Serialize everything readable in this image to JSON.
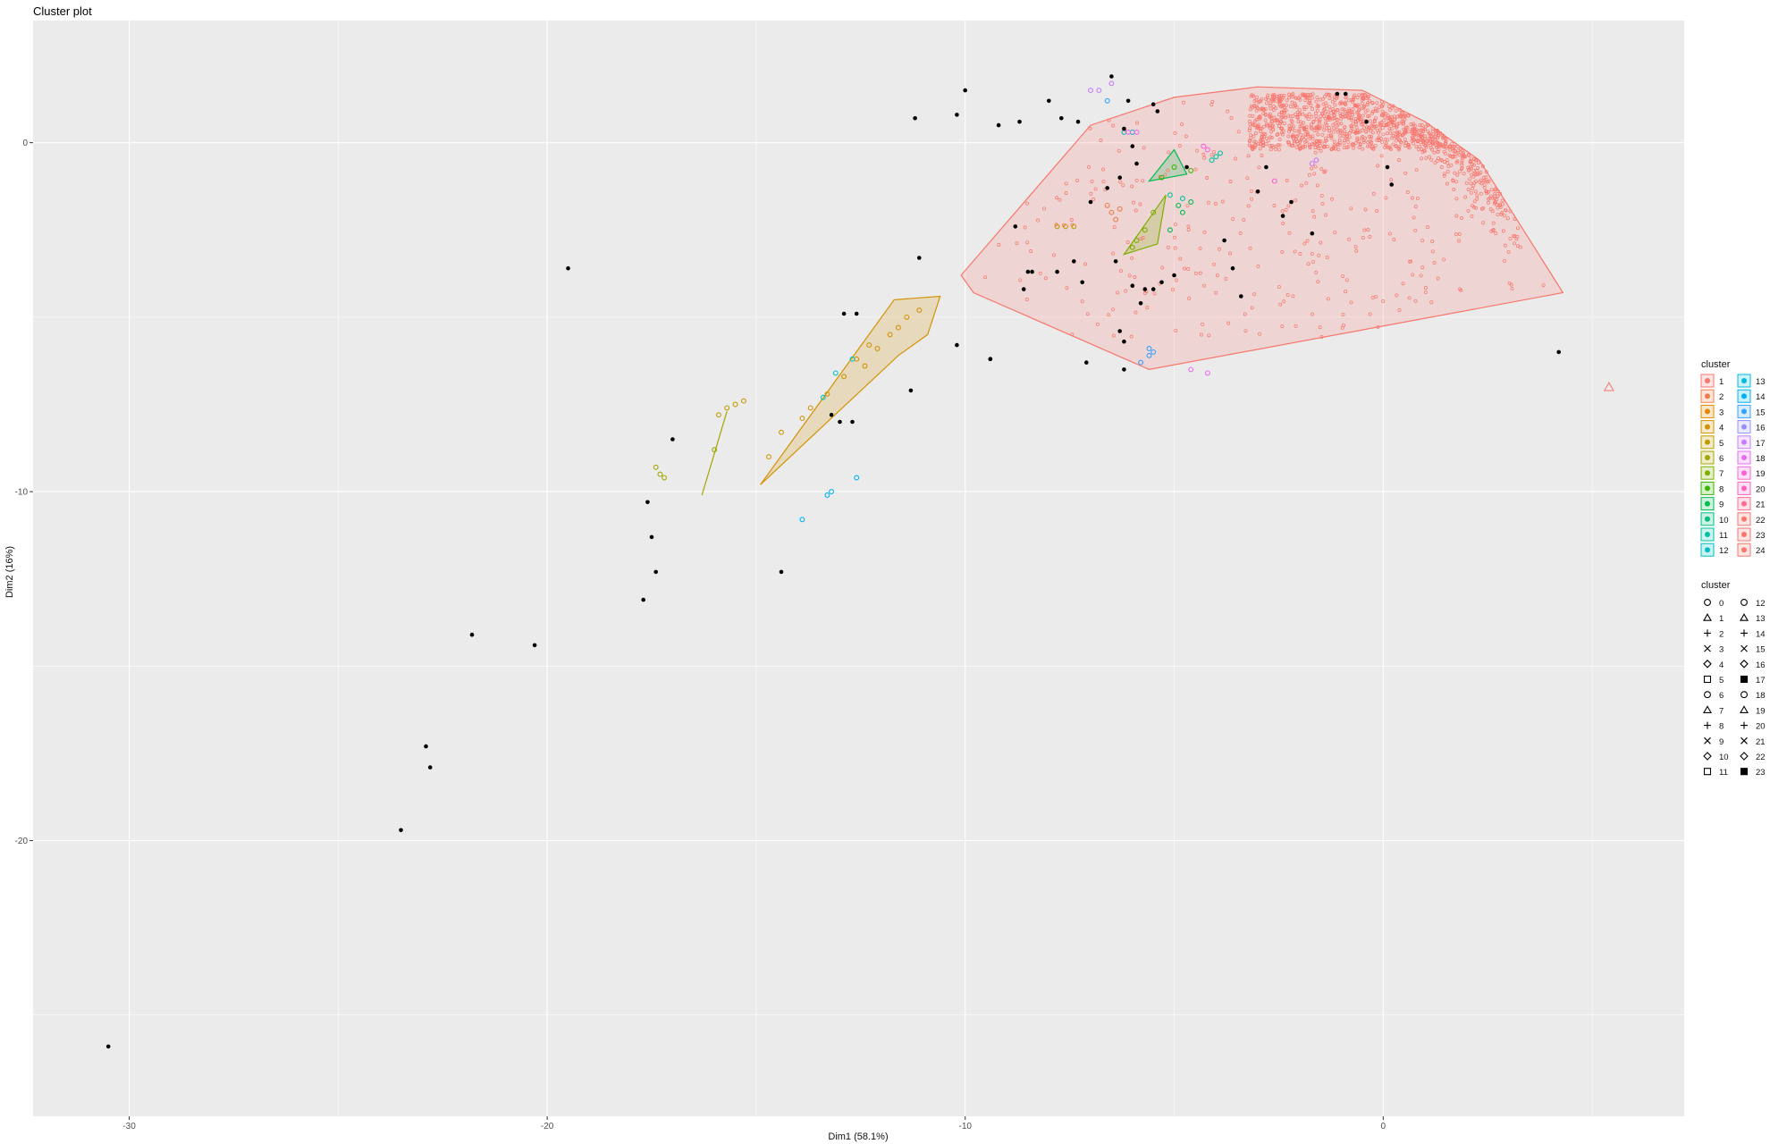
{
  "chart_data": {
    "type": "scatter",
    "title": "Cluster plot",
    "xlabel": "Dim1 (58.1%)",
    "ylabel": "Dim2 (16%)",
    "xlim": [
      -32.3,
      7.2
    ],
    "ylim": [
      -27.9,
      3.5
    ],
    "xticks": [
      "-30",
      "-20",
      "-10",
      "0"
    ],
    "xtick_values": [
      -30,
      -20,
      -10,
      0
    ],
    "yticks": [
      "0",
      "-10",
      "-20"
    ],
    "ytick_values": [
      0,
      -10,
      -20
    ],
    "grid": true,
    "legend_position": "right",
    "legend_color": {
      "title": "cluster",
      "entries": [
        "1",
        "2",
        "3",
        "4",
        "5",
        "6",
        "7",
        "8",
        "9",
        "10",
        "11",
        "12",
        "13",
        "14",
        "15",
        "16",
        "17",
        "18",
        "19",
        "20",
        "21",
        "22",
        "23",
        "24"
      ],
      "colors": [
        "#F8766D",
        "#EF7F49",
        "#E38900",
        "#D39200",
        "#C09B00",
        "#A3A500",
        "#7CAE00",
        "#39B600",
        "#00BB4E",
        "#00BF7D",
        "#00C1A3",
        "#00BFC4",
        "#00BAE0",
        "#00B0F6",
        "#35A2FF",
        "#9590FF",
        "#C77CFF",
        "#E76BF3",
        "#FA62DB",
        "#FF62BC",
        "#FF6C91",
        "#F8766D",
        "#F8766D",
        "#F8766D"
      ]
    },
    "legend_shape": {
      "title": "cluster",
      "entries": [
        "0",
        "1",
        "2",
        "3",
        "4",
        "5",
        "6",
        "7",
        "8",
        "9",
        "10",
        "11",
        "12",
        "13",
        "14",
        "15",
        "16",
        "17",
        "18",
        "19",
        "20",
        "21",
        "22",
        "23"
      ]
    },
    "main_cluster": {
      "name": "1",
      "color": "#F8766D",
      "hull": [
        [
          -10.1,
          -3.8
        ],
        [
          -9.8,
          -4.3
        ],
        [
          -5.6,
          -6.5
        ],
        [
          4.3,
          -4.3
        ],
        [
          2.3,
          -0.5
        ],
        [
          1.0,
          0.6
        ],
        [
          -0.5,
          1.5
        ],
        [
          -3.0,
          1.6
        ],
        [
          -5.0,
          1.3
        ],
        [
          -7.0,
          0.5
        ]
      ]
    },
    "clusters": [
      {
        "name": "2",
        "color": "#EF7F49",
        "points": [
          [
            -6.6,
            -1.8
          ],
          [
            -6.4,
            -2.2
          ],
          [
            -6.5,
            -2.0
          ],
          [
            -6.3,
            -1.9
          ]
        ]
      },
      {
        "name": "4",
        "color": "#D39200",
        "hull": [
          [
            -14.9,
            -9.8
          ],
          [
            -11.7,
            -4.5
          ],
          [
            -10.6,
            -4.4
          ],
          [
            -10.9,
            -5.5
          ],
          [
            -11.6,
            -6.1
          ]
        ],
        "points": [
          [
            -14.7,
            -9.0
          ],
          [
            -14.4,
            -8.3
          ],
          [
            -13.9,
            -7.9
          ],
          [
            -13.7,
            -7.6
          ],
          [
            -13.3,
            -7.2
          ],
          [
            -12.9,
            -6.7
          ],
          [
            -12.6,
            -6.2
          ],
          [
            -12.3,
            -5.8
          ],
          [
            -11.8,
            -5.5
          ],
          [
            -11.6,
            -5.3
          ],
          [
            -11.4,
            -5.0
          ],
          [
            -11.1,
            -4.8
          ],
          [
            -12.1,
            -5.9
          ],
          [
            -12.4,
            -6.4
          ]
        ]
      },
      {
        "name": "5",
        "color": "#C09B00",
        "points": [
          [
            -15.9,
            -7.8
          ],
          [
            -15.7,
            -7.6
          ],
          [
            -15.5,
            -7.5
          ],
          [
            -15.3,
            -7.4
          ],
          [
            -7.6,
            -2.4
          ],
          [
            -7.4,
            -2.4
          ],
          [
            -7.8,
            -2.4
          ]
        ]
      },
      {
        "name": "6",
        "color": "#A3A500",
        "hull": [
          [
            -16.3,
            -10.1
          ],
          [
            -15.7,
            -7.7
          ],
          [
            -15.9,
            -8.5
          ]
        ],
        "points": [
          [
            -16.0,
            -8.8
          ],
          [
            -17.4,
            -9.3
          ],
          [
            -17.3,
            -9.5
          ],
          [
            -17.2,
            -9.6
          ]
        ]
      },
      {
        "name": "7",
        "color": "#7CAE00",
        "hull": [
          [
            -6.2,
            -3.2
          ],
          [
            -5.2,
            -1.5
          ],
          [
            -5.4,
            -2.9
          ]
        ],
        "points": [
          [
            -5.7,
            -2.5
          ],
          [
            -5.9,
            -2.8
          ],
          [
            -6.0,
            -3.0
          ],
          [
            -5.5,
            -2.0
          ]
        ]
      },
      {
        "name": "8",
        "color": "#39B600",
        "points": [
          [
            -5.0,
            -0.7
          ],
          [
            -4.6,
            -0.8
          ],
          [
            -5.3,
            -1.0
          ]
        ]
      },
      {
        "name": "9",
        "color": "#00BB4E",
        "hull": [
          [
            -5.6,
            -1.1
          ],
          [
            -5.0,
            -0.2
          ],
          [
            -4.7,
            -0.9
          ]
        ],
        "points": [
          [
            -4.9,
            -1.8
          ],
          [
            -4.8,
            -2.0
          ],
          [
            -5.1,
            -2.5
          ],
          [
            -4.6,
            -1.7
          ]
        ]
      },
      {
        "name": "11",
        "color": "#00C1A3",
        "points": [
          [
            -4.0,
            -0.4
          ],
          [
            -3.9,
            -0.3
          ],
          [
            -4.1,
            -0.5
          ],
          [
            -5.1,
            -1.5
          ],
          [
            -4.8,
            -1.6
          ]
        ]
      },
      {
        "name": "12",
        "color": "#00BFC4",
        "points": [
          [
            -13.4,
            -7.3
          ],
          [
            -13.1,
            -6.6
          ],
          [
            -12.7,
            -6.2
          ],
          [
            -6.2,
            0.3
          ],
          [
            -6.0,
            0.3
          ]
        ]
      },
      {
        "name": "14",
        "color": "#00B0F6",
        "points": [
          [
            -13.9,
            -10.8
          ],
          [
            -13.3,
            -10.1
          ],
          [
            -13.2,
            -10.0
          ],
          [
            -12.6,
            -9.6
          ]
        ]
      },
      {
        "name": "15",
        "color": "#35A2FF",
        "points": [
          [
            -5.8,
            -6.3
          ],
          [
            -5.6,
            -6.1
          ],
          [
            -5.5,
            -6.0
          ],
          [
            -5.6,
            -5.9
          ],
          [
            -6.6,
            1.2
          ]
        ]
      },
      {
        "name": "17",
        "color": "#C77CFF",
        "points": [
          [
            -6.8,
            1.5
          ],
          [
            -6.5,
            1.7
          ],
          [
            -7.0,
            1.5
          ],
          [
            -1.6,
            -0.5
          ],
          [
            -1.7,
            -0.6
          ]
        ]
      },
      {
        "name": "18",
        "color": "#E76BF3",
        "points": [
          [
            -4.6,
            -6.5
          ],
          [
            -4.2,
            -6.6
          ],
          [
            -5.9,
            0.3
          ],
          [
            -6.1,
            0.3
          ]
        ]
      },
      {
        "name": "19",
        "color": "#FA62DB",
        "points": [
          [
            -4.2,
            -0.2
          ],
          [
            -4.3,
            -0.1
          ],
          [
            -2.6,
            -1.1
          ]
        ]
      },
      {
        "name": "24",
        "color": "#F8766D",
        "points": [
          [
            5.4,
            -7.0
          ]
        ]
      }
    ],
    "noise": {
      "name": "0",
      "color": "#000000",
      "points": [
        [
          -30.5,
          -25.9
        ],
        [
          -23.5,
          -19.7
        ],
        [
          -22.8,
          -17.9
        ],
        [
          -22.9,
          -17.3
        ],
        [
          -20.3,
          -14.4
        ],
        [
          -21.8,
          -14.1
        ],
        [
          -17.7,
          -13.1
        ],
        [
          -17.4,
          -12.3
        ],
        [
          -17.5,
          -11.3
        ],
        [
          -17.6,
          -10.3
        ],
        [
          -17.0,
          -8.5
        ],
        [
          -19.5,
          -3.6
        ],
        [
          -14.4,
          -12.3
        ],
        [
          -13.0,
          -8.0
        ],
        [
          -12.7,
          -8.0
        ],
        [
          -13.2,
          -7.8
        ],
        [
          -11.3,
          -7.1
        ],
        [
          -12.9,
          -4.9
        ],
        [
          -12.6,
          -4.9
        ],
        [
          -9.4,
          -6.2
        ],
        [
          -10.2,
          -5.8
        ],
        [
          -9.4,
          -6.2
        ],
        [
          -11.1,
          -3.3
        ],
        [
          -11.2,
          0.7
        ],
        [
          -10.2,
          0.8
        ],
        [
          -10.0,
          1.5
        ],
        [
          -9.2,
          0.5
        ],
        [
          -8.7,
          0.6
        ],
        [
          -8.0,
          1.2
        ],
        [
          -7.7,
          0.7
        ],
        [
          -7.3,
          0.6
        ],
        [
          -6.5,
          1.9
        ],
        [
          -6.1,
          1.2
        ],
        [
          -5.5,
          1.1
        ],
        [
          -5.4,
          0.9
        ],
        [
          -8.8,
          -2.4
        ],
        [
          -8.5,
          -3.7
        ],
        [
          -8.4,
          -3.7
        ],
        [
          -8.6,
          -4.2
        ],
        [
          -7.8,
          -3.7
        ],
        [
          -7.4,
          -3.4
        ],
        [
          -7.2,
          -4.0
        ],
        [
          -7.0,
          -1.7
        ],
        [
          -6.6,
          -1.3
        ],
        [
          -6.3,
          -1.0
        ],
        [
          -6.2,
          0.4
        ],
        [
          -6.0,
          -0.1
        ],
        [
          -5.9,
          -0.6
        ],
        [
          -6.4,
          -3.4
        ],
        [
          -6.0,
          -4.1
        ],
        [
          -5.8,
          -4.6
        ],
        [
          -5.7,
          -4.2
        ],
        [
          -5.5,
          -4.2
        ],
        [
          -5.3,
          -4.0
        ],
        [
          -6.3,
          -5.4
        ],
        [
          -6.2,
          -5.7
        ],
        [
          -6.2,
          -6.5
        ],
        [
          -7.1,
          -6.3
        ],
        [
          -5.0,
          -3.8
        ],
        [
          -4.7,
          -0.7
        ],
        [
          -3.8,
          -2.8
        ],
        [
          -3.6,
          -3.6
        ],
        [
          -3.4,
          -4.4
        ],
        [
          -3.0,
          -1.4
        ],
        [
          -2.8,
          -0.7
        ],
        [
          -2.4,
          -2.1
        ],
        [
          -2.2,
          -1.7
        ],
        [
          -1.7,
          -2.6
        ],
        [
          -1.1,
          1.4
        ],
        [
          -0.9,
          1.4
        ],
        [
          -0.4,
          0.6
        ],
        [
          0.1,
          -0.7
        ],
        [
          0.2,
          -1.2
        ],
        [
          4.2,
          -6.0
        ]
      ]
    }
  }
}
